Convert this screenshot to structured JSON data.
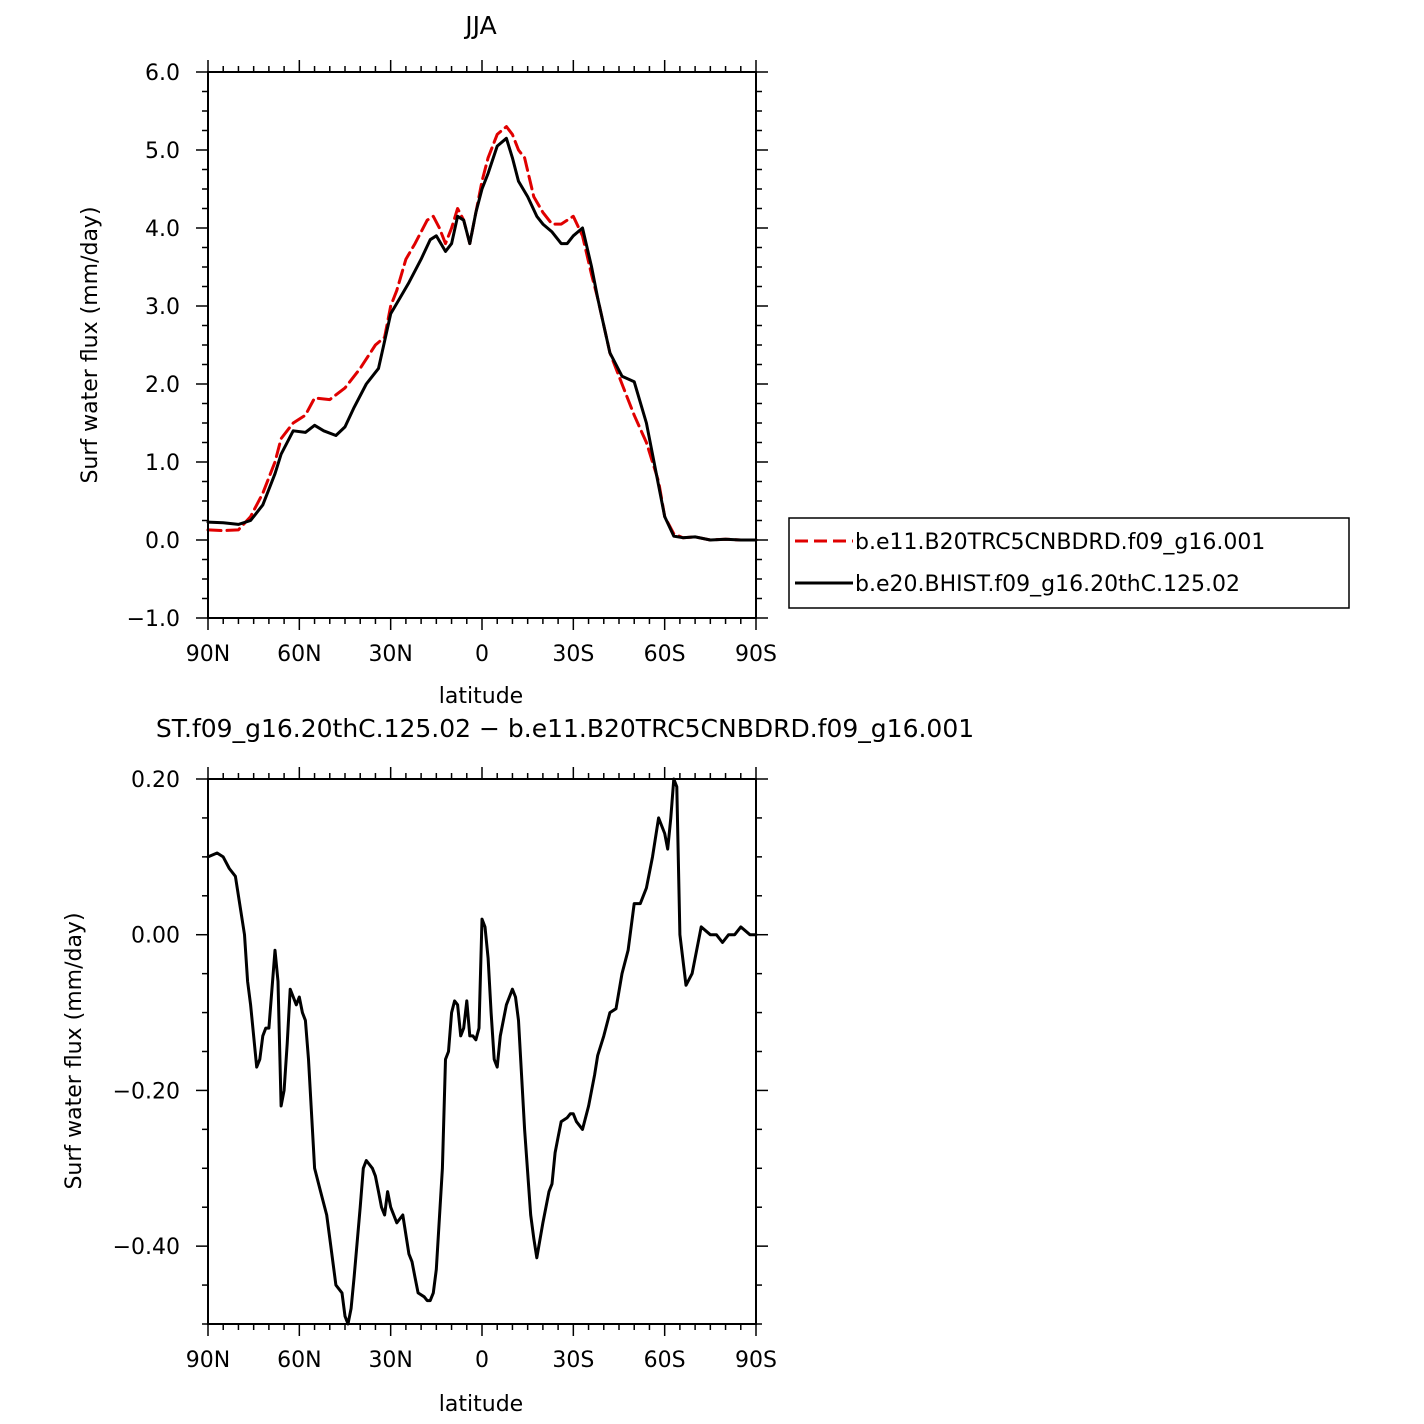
{
  "chart_data": [
    {
      "type": "line",
      "title": "JJA",
      "xlabel": "latitude",
      "ylabel": "Surf water flux (mm/day)",
      "xlim": [
        90,
        -90
      ],
      "ylim": [
        -1.0,
        6.0
      ],
      "x_tick_values": [
        90,
        60,
        30,
        0,
        -30,
        -60,
        -90
      ],
      "x_tick_labels": [
        "90N",
        "60N",
        "30N",
        "0",
        "30S",
        "60S",
        "90S"
      ],
      "y_tick_values": [
        -1.0,
        0.0,
        1.0,
        2.0,
        3.0,
        4.0,
        5.0,
        6.0
      ],
      "y_tick_labels": [
        "−1.0",
        "0.0",
        "1.0",
        "2.0",
        "3.0",
        "4.0",
        "5.0",
        "6.0"
      ],
      "legend_position": "right",
      "series": [
        {
          "name": "b.e11.B20TRC5CNBDRD.f09_g16.001",
          "color": "#e00000",
          "dash": "dashed",
          "x": [
            90,
            85,
            80,
            76,
            72,
            68,
            66,
            62,
            58,
            55,
            50,
            45,
            40,
            35,
            32,
            30,
            28,
            25,
            22,
            18,
            16,
            14,
            12,
            10,
            8,
            6,
            4,
            2,
            0,
            -2,
            -5,
            -8,
            -10,
            -12,
            -14,
            -17,
            -20,
            -23,
            -26,
            -30,
            -33,
            -36,
            -38,
            -42,
            -46,
            -50,
            -54,
            -58,
            -60,
            -63,
            -66,
            -70,
            -75,
            -80,
            -85,
            -90
          ],
          "y": [
            0.13,
            0.12,
            0.13,
            0.3,
            0.6,
            1.0,
            1.3,
            1.5,
            1.6,
            1.82,
            1.8,
            1.95,
            2.2,
            2.5,
            2.6,
            3.0,
            3.2,
            3.6,
            3.8,
            4.1,
            4.15,
            4.0,
            3.8,
            4.0,
            4.25,
            4.1,
            3.8,
            4.2,
            4.6,
            4.9,
            5.2,
            5.3,
            5.2,
            5.0,
            4.9,
            4.4,
            4.2,
            4.05,
            4.05,
            4.15,
            3.9,
            3.4,
            3.1,
            2.4,
            2.0,
            1.6,
            1.25,
            0.75,
            0.3,
            0.08,
            0.03,
            0.04,
            0.0,
            0.01,
            0.0,
            0.0
          ]
        },
        {
          "name": "b.e20.BHIST.f09_g16.20thC.125.02",
          "color": "#000000",
          "dash": "solid",
          "x": [
            90,
            85,
            80,
            76,
            72,
            68,
            66,
            62,
            58,
            55,
            52,
            48,
            45,
            42,
            38,
            34,
            30,
            27,
            24,
            20,
            17,
            15,
            12,
            10,
            8,
            6,
            4,
            2,
            0,
            -2,
            -5,
            -8,
            -10,
            -12,
            -15,
            -18,
            -20,
            -23,
            -26,
            -28,
            -30,
            -33,
            -36,
            -38,
            -42,
            -46,
            -50,
            -54,
            -58,
            -60,
            -63,
            -66,
            -70,
            -75,
            -80,
            -85,
            -90
          ],
          "y": [
            0.23,
            0.22,
            0.2,
            0.25,
            0.45,
            0.85,
            1.1,
            1.4,
            1.38,
            1.47,
            1.4,
            1.34,
            1.45,
            1.7,
            2.0,
            2.2,
            2.9,
            3.1,
            3.3,
            3.6,
            3.85,
            3.9,
            3.7,
            3.8,
            4.15,
            4.1,
            3.8,
            4.2,
            4.5,
            4.7,
            5.05,
            5.15,
            4.9,
            4.6,
            4.4,
            4.15,
            4.05,
            3.95,
            3.8,
            3.8,
            3.9,
            4.0,
            3.5,
            3.1,
            2.4,
            2.1,
            2.03,
            1.5,
            0.7,
            0.3,
            0.05,
            0.03,
            0.04,
            0.0,
            0.01,
            0.0,
            0.0
          ]
        }
      ]
    },
    {
      "type": "line",
      "title": "ST.f09_g16.20thC.125.02 − b.e11.B20TRC5CNBDRD.f09_g16.001",
      "xlabel": "latitude",
      "ylabel": "Surf water flux (mm/day)",
      "xlim": [
        90,
        -90
      ],
      "ylim": [
        -0.5,
        0.2
      ],
      "x_tick_values": [
        90,
        60,
        30,
        0,
        -30,
        -60,
        -90
      ],
      "x_tick_labels": [
        "90N",
        "60N",
        "30N",
        "0",
        "30S",
        "60S",
        "90S"
      ],
      "y_tick_values": [
        -0.4,
        -0.2,
        0.0,
        0.2
      ],
      "y_tick_labels": [
        "−0.40",
        "−0.20",
        "0.00",
        "0.20"
      ],
      "series": [
        {
          "color": "#000000",
          "dash": "solid",
          "x": [
            90,
            87,
            85,
            83,
            81,
            78,
            77,
            76,
            74,
            73,
            72,
            71,
            70,
            68,
            67,
            66,
            65,
            64,
            63,
            61,
            60,
            59,
            58,
            57,
            55,
            53,
            51,
            50,
            48,
            46,
            45,
            44,
            43,
            42,
            40,
            39,
            38,
            36,
            35,
            34,
            33,
            32,
            31,
            30,
            28,
            26,
            24,
            23,
            22,
            21,
            19,
            18,
            17,
            16,
            15,
            13,
            12,
            11,
            10,
            9,
            8,
            7,
            6,
            5,
            4,
            3,
            2,
            1,
            0,
            -1,
            -2,
            -3,
            -4,
            -5,
            -6,
            -8,
            -10,
            -11,
            -12,
            -14,
            -16,
            -17,
            -18,
            -20,
            -22,
            -23,
            -24,
            -25,
            -26,
            -28,
            -29,
            -30,
            -31,
            -33,
            -35,
            -37,
            -38,
            -40,
            -42,
            -44,
            -46,
            -48,
            -50,
            -52,
            -54,
            -56,
            -58,
            -60,
            -61,
            -62,
            -63,
            -64,
            -65,
            -67,
            -69,
            -72,
            -75,
            -77,
            -79,
            -81,
            -83,
            -85,
            -88,
            -90
          ],
          "y": [
            0.1,
            0.105,
            0.1,
            0.085,
            0.075,
            0.0,
            -0.06,
            -0.09,
            -0.17,
            -0.16,
            -0.13,
            -0.12,
            -0.12,
            -0.02,
            -0.06,
            -0.22,
            -0.2,
            -0.14,
            -0.07,
            -0.09,
            -0.08,
            -0.1,
            -0.11,
            -0.16,
            -0.3,
            -0.33,
            -0.36,
            -0.39,
            -0.45,
            -0.46,
            -0.49,
            -0.5,
            -0.48,
            -0.44,
            -0.35,
            -0.3,
            -0.29,
            -0.3,
            -0.31,
            -0.33,
            -0.35,
            -0.36,
            -0.33,
            -0.35,
            -0.37,
            -0.36,
            -0.41,
            -0.42,
            -0.44,
            -0.46,
            -0.465,
            -0.47,
            -0.47,
            -0.46,
            -0.43,
            -0.3,
            -0.16,
            -0.15,
            -0.1,
            -0.085,
            -0.09,
            -0.13,
            -0.12,
            -0.085,
            -0.13,
            -0.13,
            -0.135,
            -0.12,
            0.02,
            0.01,
            -0.03,
            -0.1,
            -0.16,
            -0.17,
            -0.13,
            -0.09,
            -0.07,
            -0.08,
            -0.11,
            -0.25,
            -0.36,
            -0.39,
            -0.415,
            -0.37,
            -0.33,
            -0.32,
            -0.28,
            -0.26,
            -0.24,
            -0.235,
            -0.23,
            -0.23,
            -0.24,
            -0.25,
            -0.22,
            -0.18,
            -0.155,
            -0.13,
            -0.1,
            -0.095,
            -0.05,
            -0.02,
            0.04,
            0.04,
            0.06,
            0.1,
            0.15,
            0.13,
            0.11,
            0.15,
            0.2,
            0.19,
            0.0,
            -0.065,
            -0.05,
            0.01,
            0.0,
            0.0,
            -0.01,
            0.0,
            0.0,
            0.01,
            0.0,
            0.0
          ]
        }
      ]
    }
  ]
}
